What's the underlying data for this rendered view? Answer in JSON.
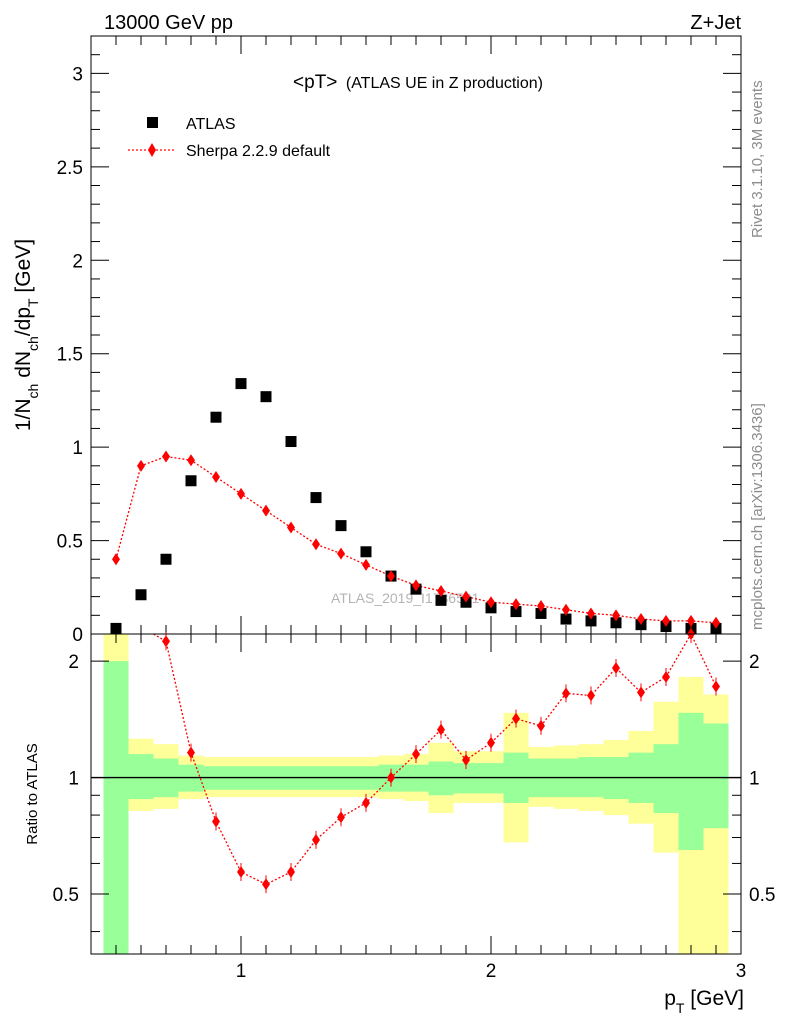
{
  "header": {
    "energy_label": "13000 GeV pp",
    "process_label": "Z+Jet"
  },
  "side_text": {
    "rivet": "Rivet 3.1.10,  3M events",
    "mcplots": "mcplots.cern.ch [arXiv:1306.3436]"
  },
  "chart_data": [
    {
      "type": "scatter",
      "title_main": "<pT>",
      "title_sub": "(ATLAS UE in Z production)",
      "ylabel": "1/N_ch dN_ch/dp_T [GeV]",
      "xlim": [
        0.4,
        3.0
      ],
      "ylim": [
        0,
        3.2
      ],
      "yticks": [
        0,
        0.5,
        1,
        1.5,
        2,
        2.5,
        3
      ],
      "yticklabels": [
        "0",
        "0.5",
        "1",
        "1.5",
        "2",
        "2.5",
        "3"
      ],
      "legend_placement": "top-left",
      "watermark": "ATLAS_2019_I1736531",
      "series": [
        {
          "name": "ATLAS",
          "marker": "square",
          "color": "#000000",
          "x": [
            0.5,
            0.6,
            0.7,
            0.8,
            0.9,
            1.0,
            1.1,
            1.2,
            1.3,
            1.4,
            1.5,
            1.6,
            1.7,
            1.8,
            1.9,
            2.0,
            2.1,
            2.2,
            2.3,
            2.4,
            2.5,
            2.6,
            2.7,
            2.8,
            2.9
          ],
          "y": [
            0.03,
            0.21,
            0.4,
            0.82,
            1.16,
            1.34,
            1.27,
            1.03,
            0.73,
            0.58,
            0.44,
            0.31,
            0.24,
            0.18,
            0.17,
            0.14,
            0.12,
            0.11,
            0.08,
            0.07,
            0.06,
            0.05,
            0.04,
            0.03,
            0.03
          ]
        },
        {
          "name": "Sherpa 2.2.9 default",
          "marker": "diamond",
          "line": "dotted",
          "color": "#ff0000",
          "x": [
            0.5,
            0.6,
            0.7,
            0.8,
            0.9,
            1.0,
            1.1,
            1.2,
            1.3,
            1.4,
            1.5,
            1.6,
            1.7,
            1.8,
            1.9,
            2.0,
            2.1,
            2.2,
            2.3,
            2.4,
            2.5,
            2.6,
            2.7,
            2.8,
            2.9
          ],
          "y": [
            0.4,
            0.9,
            0.95,
            0.93,
            0.84,
            0.75,
            0.66,
            0.57,
            0.48,
            0.43,
            0.37,
            0.31,
            0.26,
            0.23,
            0.2,
            0.17,
            0.16,
            0.15,
            0.13,
            0.11,
            0.1,
            0.08,
            0.07,
            0.07,
            0.06
          ]
        }
      ]
    },
    {
      "type": "scatter",
      "ylabel": "Ratio to ATLAS",
      "xlabel": "p_T [GeV]",
      "xlim": [
        0.4,
        3.0
      ],
      "ylim": [
        0.35,
        2.35
      ],
      "yscale": "log",
      "xticks": [
        1,
        2,
        3
      ],
      "xticklabels": [
        "1",
        "2",
        "3"
      ],
      "yticks_labeled": [
        0.5,
        1,
        2
      ],
      "yticklabels": [
        "0.5",
        "1",
        "2"
      ],
      "reference_line": 1,
      "bands": {
        "edges": [
          0.45,
          0.55,
          0.65,
          0.75,
          0.85,
          0.95,
          1.05,
          1.15,
          1.25,
          1.35,
          1.45,
          1.55,
          1.65,
          1.75,
          1.85,
          1.95,
          2.05,
          2.15,
          2.25,
          2.35,
          2.45,
          2.55,
          2.65,
          2.75,
          2.85,
          2.95
        ],
        "stat_color": "#99ff99",
        "total_color": "#ffff99",
        "stat_low": [
          0.35,
          0.88,
          0.89,
          0.92,
          0.93,
          0.93,
          0.93,
          0.93,
          0.93,
          0.93,
          0.93,
          0.92,
          0.92,
          0.9,
          0.91,
          0.91,
          0.86,
          0.89,
          0.89,
          0.89,
          0.88,
          0.86,
          0.81,
          0.65,
          0.74
        ],
        "stat_high": [
          2.0,
          1.15,
          1.12,
          1.08,
          1.07,
          1.07,
          1.07,
          1.07,
          1.07,
          1.07,
          1.07,
          1.08,
          1.08,
          1.1,
          1.09,
          1.09,
          1.16,
          1.12,
          1.12,
          1.13,
          1.13,
          1.16,
          1.22,
          1.47,
          1.38
        ],
        "total_low": [
          0.35,
          0.82,
          0.83,
          0.88,
          0.89,
          0.89,
          0.89,
          0.89,
          0.89,
          0.89,
          0.89,
          0.88,
          0.87,
          0.81,
          0.86,
          0.86,
          0.68,
          0.84,
          0.83,
          0.82,
          0.8,
          0.76,
          0.64,
          0.35,
          0.35
        ],
        "total_high": [
          2.35,
          1.26,
          1.22,
          1.14,
          1.13,
          1.13,
          1.13,
          1.13,
          1.13,
          1.13,
          1.13,
          1.14,
          1.15,
          1.23,
          1.17,
          1.17,
          1.47,
          1.2,
          1.21,
          1.22,
          1.25,
          1.32,
          1.57,
          1.82,
          1.64
        ]
      },
      "series": [
        {
          "name": "Sherpa 2.2.9 default",
          "marker": "diamond",
          "line": "dotted",
          "color": "#ff0000",
          "x": [
            0.7,
            0.8,
            0.9,
            1.0,
            1.1,
            1.2,
            1.3,
            1.4,
            1.5,
            1.6,
            1.7,
            1.8,
            1.9,
            2.0,
            2.1,
            2.2,
            2.3,
            2.4,
            2.5,
            2.6,
            2.7,
            2.8,
            2.9
          ],
          "y": [
            2.25,
            1.16,
            0.77,
            0.57,
            0.53,
            0.57,
            0.69,
            0.79,
            0.86,
            1.0,
            1.15,
            1.33,
            1.11,
            1.23,
            1.42,
            1.36,
            1.65,
            1.63,
            1.92,
            1.66,
            1.82,
            2.4,
            1.72
          ]
        }
      ]
    }
  ]
}
